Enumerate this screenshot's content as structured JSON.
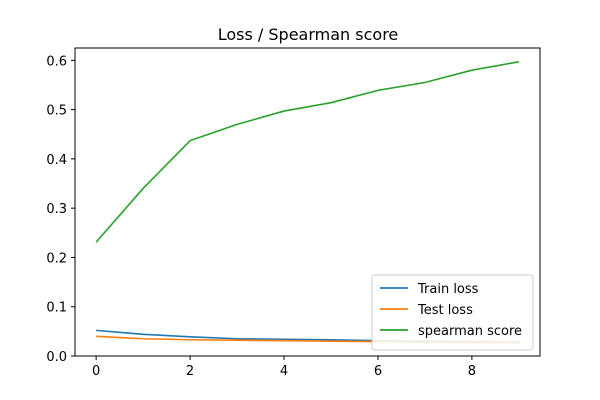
{
  "chart_data": {
    "type": "line",
    "title": "Loss / Spearman score",
    "xlabel": "",
    "ylabel": "",
    "x": [
      0,
      1,
      2,
      3,
      4,
      5,
      6,
      7,
      8,
      9
    ],
    "xlim": [
      -0.45,
      9.45
    ],
    "ylim": [
      0,
      0.625
    ],
    "xticks": [
      0,
      2,
      4,
      6,
      8
    ],
    "yticks": [
      0.0,
      0.1,
      0.2,
      0.3,
      0.4,
      0.5,
      0.6
    ],
    "grid": false,
    "legend_position": "lower-right",
    "series": [
      {
        "name": "Train loss",
        "color": "#1f77b4",
        "values": [
          0.052,
          0.044,
          0.039,
          0.035,
          0.034,
          0.033,
          0.031,
          0.03,
          0.029,
          0.028
        ]
      },
      {
        "name": "Test loss",
        "color": "#ff7f0e",
        "values": [
          0.04,
          0.035,
          0.033,
          0.032,
          0.031,
          0.03,
          0.029,
          0.028,
          0.028,
          0.027
        ]
      },
      {
        "name": "spearman score",
        "color": "#2ca02c",
        "values": [
          0.231,
          0.34,
          0.437,
          0.47,
          0.497,
          0.514,
          0.539,
          0.555,
          0.58,
          0.597
        ]
      }
    ]
  }
}
